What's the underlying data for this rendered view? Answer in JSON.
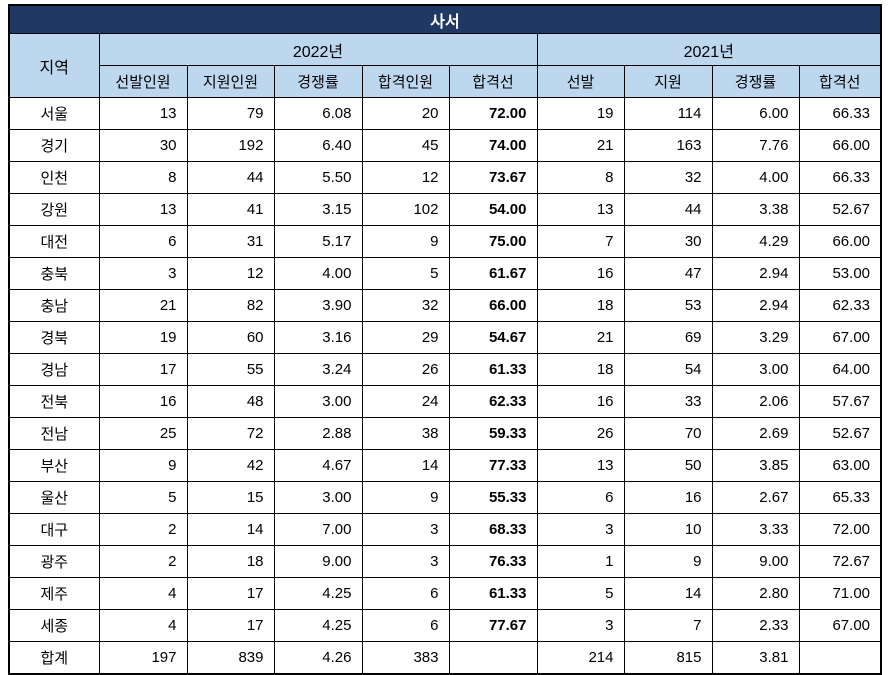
{
  "chart_data": {
    "type": "table",
    "title": "사서",
    "region_header": "지역",
    "column_groups": [
      {
        "label": "2022년",
        "columns": [
          "선발인원",
          "지원인원",
          "경쟁률",
          "합격인원",
          "합격선"
        ]
      },
      {
        "label": "2021년",
        "columns": [
          "선발",
          "지원",
          "경쟁률",
          "합격선"
        ]
      }
    ],
    "rows": [
      {
        "region": "서울",
        "values": [
          "13",
          "79",
          "6.08",
          "20",
          "72.00",
          "19",
          "114",
          "6.00",
          "66.33"
        ]
      },
      {
        "region": "경기",
        "values": [
          "30",
          "192",
          "6.40",
          "45",
          "74.00",
          "21",
          "163",
          "7.76",
          "66.00"
        ]
      },
      {
        "region": "인천",
        "values": [
          "8",
          "44",
          "5.50",
          "12",
          "73.67",
          "8",
          "32",
          "4.00",
          "66.33"
        ]
      },
      {
        "region": "강원",
        "values": [
          "13",
          "41",
          "3.15",
          "102",
          "54.00",
          "13",
          "44",
          "3.38",
          "52.67"
        ]
      },
      {
        "region": "대전",
        "values": [
          "6",
          "31",
          "5.17",
          "9",
          "75.00",
          "7",
          "30",
          "4.29",
          "66.00"
        ]
      },
      {
        "region": "충북",
        "values": [
          "3",
          "12",
          "4.00",
          "5",
          "61.67",
          "16",
          "47",
          "2.94",
          "53.00"
        ]
      },
      {
        "region": "충남",
        "values": [
          "21",
          "82",
          "3.90",
          "32",
          "66.00",
          "18",
          "53",
          "2.94",
          "62.33"
        ]
      },
      {
        "region": "경북",
        "values": [
          "19",
          "60",
          "3.16",
          "29",
          "54.67",
          "21",
          "69",
          "3.29",
          "67.00"
        ]
      },
      {
        "region": "경남",
        "values": [
          "17",
          "55",
          "3.24",
          "26",
          "61.33",
          "18",
          "54",
          "3.00",
          "64.00"
        ]
      },
      {
        "region": "전북",
        "values": [
          "16",
          "48",
          "3.00",
          "24",
          "62.33",
          "16",
          "33",
          "2.06",
          "57.67"
        ]
      },
      {
        "region": "전남",
        "values": [
          "25",
          "72",
          "2.88",
          "38",
          "59.33",
          "26",
          "70",
          "2.69",
          "52.67"
        ]
      },
      {
        "region": "부산",
        "values": [
          "9",
          "42",
          "4.67",
          "14",
          "77.33",
          "13",
          "50",
          "3.85",
          "63.00"
        ]
      },
      {
        "region": "울산",
        "values": [
          "5",
          "15",
          "3.00",
          "9",
          "55.33",
          "6",
          "16",
          "2.67",
          "65.33"
        ]
      },
      {
        "region": "대구",
        "values": [
          "2",
          "14",
          "7.00",
          "3",
          "68.33",
          "3",
          "10",
          "3.33",
          "72.00"
        ]
      },
      {
        "region": "광주",
        "values": [
          "2",
          "18",
          "9.00",
          "3",
          "76.33",
          "1",
          "9",
          "9.00",
          "72.67"
        ]
      },
      {
        "region": "제주",
        "values": [
          "4",
          "17",
          "4.25",
          "6",
          "61.33",
          "5",
          "14",
          "2.80",
          "71.00"
        ]
      },
      {
        "region": "세종",
        "values": [
          "4",
          "17",
          "4.25",
          "6",
          "77.67",
          "3",
          "7",
          "2.33",
          "67.00"
        ]
      }
    ],
    "total": {
      "region": "합계",
      "values": [
        "197",
        "839",
        "4.26",
        "383",
        "",
        "214",
        "815",
        "3.81",
        ""
      ]
    }
  },
  "colors": {
    "title_bar_navy": "#1f3864",
    "header_blue": "#bdd7ee",
    "cutline_blue": "#0070c0",
    "border_black": "#000000"
  }
}
